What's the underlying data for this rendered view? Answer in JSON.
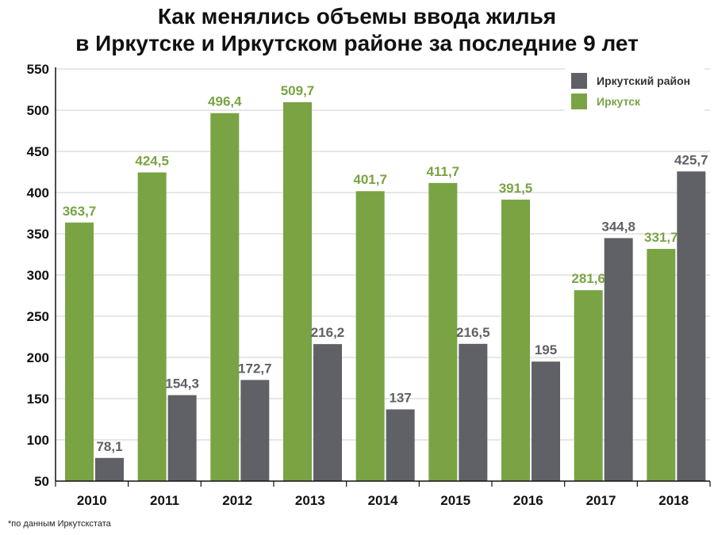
{
  "chart_data": {
    "type": "bar",
    "title_lines": [
      "Как менялись объемы ввода жилья",
      "в Иркутске и Иркутском районе за последние 9 лет"
    ],
    "categories": [
      "2010",
      "2011",
      "2012",
      "2013",
      "2014",
      "2015",
      "2016",
      "2017",
      "2018"
    ],
    "series": [
      {
        "name": "Иркутск",
        "color": "#7aa344",
        "values": [
          363.7,
          424.5,
          496.4,
          509.7,
          401.7,
          411.7,
          391.5,
          281.6,
          331.7
        ],
        "labels": [
          "363,7",
          "424,5",
          "496,4",
          "509,7",
          "401,7",
          "411,7",
          "391,5",
          "281,6",
          "331,7"
        ]
      },
      {
        "name": "Иркутский район",
        "color": "#5f6166",
        "values": [
          78.1,
          154.3,
          172.7,
          216.2,
          137,
          216.5,
          195,
          344.8,
          425.7
        ],
        "labels": [
          "78,1",
          "154,3",
          "172,7",
          "216,2",
          "137",
          "216,5",
          "195",
          "344,8",
          "425,7"
        ]
      }
    ],
    "legend_order": [
      1,
      0
    ],
    "legend_position": "top-right",
    "ylim": [
      50,
      550
    ],
    "yticks": [
      50,
      100,
      150,
      200,
      250,
      300,
      350,
      400,
      450,
      500,
      550
    ],
    "ytick_labels": [
      "50",
      "100",
      "150",
      "200",
      "250",
      "300",
      "350",
      "400",
      "450",
      "500",
      "550"
    ],
    "grid": "horizontal",
    "xlabel": "",
    "ylabel": "",
    "footnote": "*по данным Иркутскстата"
  }
}
